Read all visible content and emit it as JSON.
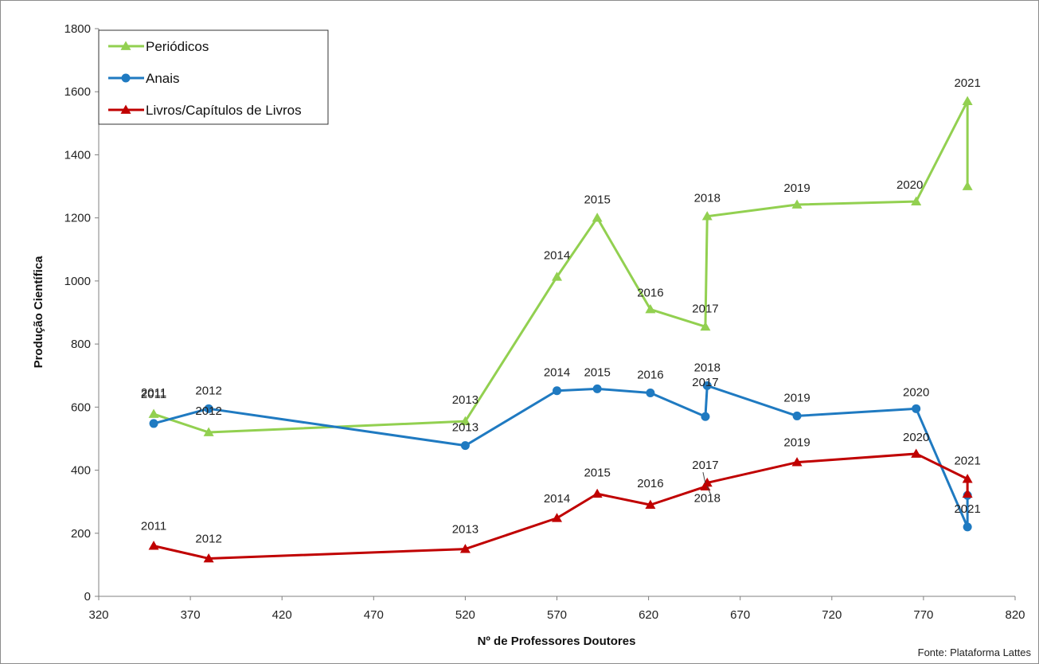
{
  "chart_data": {
    "type": "line",
    "xlabel": "Nº de Professores Doutores",
    "ylabel": "Produção Científica",
    "source_note": "Fonte: Plataforma Lattes",
    "xlim": [
      320,
      820
    ],
    "ylim": [
      0,
      1800
    ],
    "x_ticks": [
      "320",
      "370",
      "420",
      "470",
      "520",
      "570",
      "620",
      "670",
      "720",
      "770",
      "820"
    ],
    "y_ticks": [
      "0",
      "200",
      "400",
      "600",
      "800",
      "1000",
      "1200",
      "1400",
      "1600",
      "1800"
    ],
    "grid": false,
    "legend_position": "top-left",
    "series": [
      {
        "name": "Periódicos",
        "color": "#92d050",
        "marker": "triangle",
        "points": [
          {
            "x": 350,
            "y": 578,
            "label": "2011"
          },
          {
            "x": 380,
            "y": 520,
            "label": "2012"
          },
          {
            "x": 520,
            "y": 555,
            "label": "2013"
          },
          {
            "x": 570,
            "y": 1013,
            "label": "2014"
          },
          {
            "x": 592,
            "y": 1200,
            "label": "2015"
          },
          {
            "x": 621,
            "y": 910,
            "label": "2016"
          },
          {
            "x": 651,
            "y": 855,
            "label": "2017"
          },
          {
            "x": 652,
            "y": 1205,
            "label": "2018"
          },
          {
            "x": 701,
            "y": 1242,
            "label": "2019"
          },
          {
            "x": 766,
            "y": 1252,
            "label": "2020"
          },
          {
            "x": 794,
            "y": 1570,
            "label": "2021"
          },
          {
            "x": 794,
            "y": 1300,
            "label": ""
          }
        ]
      },
      {
        "name": "Anais",
        "color": "#1f7ac1",
        "marker": "circle",
        "points": [
          {
            "x": 350,
            "y": 548,
            "label": "2011"
          },
          {
            "x": 380,
            "y": 595,
            "label": "2012"
          },
          {
            "x": 520,
            "y": 478,
            "label": "2013"
          },
          {
            "x": 570,
            "y": 652,
            "label": "2014"
          },
          {
            "x": 592,
            "y": 658,
            "label": "2015"
          },
          {
            "x": 621,
            "y": 645,
            "label": "2016"
          },
          {
            "x": 651,
            "y": 570,
            "label": "2017"
          },
          {
            "x": 652,
            "y": 668,
            "label": "2018"
          },
          {
            "x": 701,
            "y": 572,
            "label": "2019"
          },
          {
            "x": 766,
            "y": 595,
            "label": "2020"
          },
          {
            "x": 794,
            "y": 220,
            "label": "2021"
          },
          {
            "x": 794,
            "y": 320,
            "label": ""
          }
        ]
      },
      {
        "name": "Livros/Capítulos de Livros",
        "color": "#c00000",
        "marker": "triangle",
        "points": [
          {
            "x": 350,
            "y": 160,
            "label": "2011"
          },
          {
            "x": 380,
            "y": 120,
            "label": "2012"
          },
          {
            "x": 520,
            "y": 150,
            "label": "2013"
          },
          {
            "x": 570,
            "y": 248,
            "label": "2014"
          },
          {
            "x": 592,
            "y": 325,
            "label": "2015"
          },
          {
            "x": 621,
            "y": 290,
            "label": "2016"
          },
          {
            "x": 651,
            "y": 348,
            "label": "2017"
          },
          {
            "x": 652,
            "y": 360,
            "label": "2018"
          },
          {
            "x": 701,
            "y": 425,
            "label": "2019"
          },
          {
            "x": 766,
            "y": 452,
            "label": "2020"
          },
          {
            "x": 794,
            "y": 372,
            "label": "2021"
          },
          {
            "x": 794,
            "y": 325,
            "label": ""
          }
        ]
      }
    ]
  }
}
